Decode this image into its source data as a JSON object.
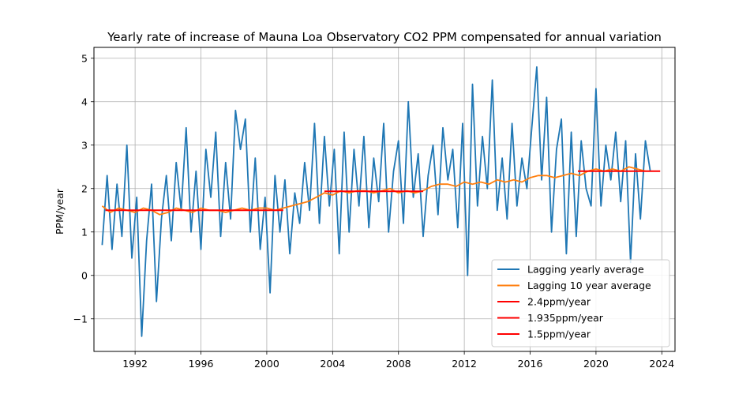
{
  "chart_data": {
    "type": "line",
    "title": "Yearly rate of increase of Mauna Loa Observatory CO2 PPM compensated for annual variation",
    "xlabel": "",
    "ylabel": "PPM/year",
    "xlim": [
      1989.5,
      2024.8
    ],
    "ylim": [
      -1.75,
      5.25
    ],
    "x_ticks": [
      1992,
      1996,
      2000,
      2004,
      2008,
      2012,
      2016,
      2020,
      2024
    ],
    "y_ticks": [
      -1,
      0,
      1,
      2,
      3,
      4,
      5
    ],
    "y_tick_labels": [
      "−1",
      "0",
      "1",
      "2",
      "3",
      "4",
      "5"
    ],
    "grid": true,
    "legend_position": "lower-right",
    "series": [
      {
        "name": "Lagging yearly average",
        "color": "#1f77b4",
        "x": [
          1990.0,
          1990.3,
          1990.6,
          1990.9,
          1991.2,
          1991.5,
          1991.8,
          1992.1,
          1992.4,
          1992.7,
          1993.0,
          1993.3,
          1993.6,
          1993.9,
          1994.2,
          1994.5,
          1994.8,
          1995.1,
          1995.4,
          1995.7,
          1996.0,
          1996.3,
          1996.6,
          1996.9,
          1997.2,
          1997.5,
          1997.8,
          1998.1,
          1998.4,
          1998.7,
          1999.0,
          1999.3,
          1999.6,
          1999.9,
          2000.2,
          2000.5,
          2000.8,
          2001.1,
          2001.4,
          2001.7,
          2002.0,
          2002.3,
          2002.6,
          2002.9,
          2003.2,
          2003.5,
          2003.8,
          2004.1,
          2004.4,
          2004.7,
          2005.0,
          2005.3,
          2005.6,
          2005.9,
          2006.2,
          2006.5,
          2006.8,
          2007.1,
          2007.4,
          2007.7,
          2008.0,
          2008.3,
          2008.6,
          2008.9,
          2009.2,
          2009.5,
          2009.8,
          2010.1,
          2010.4,
          2010.7,
          2011.0,
          2011.3,
          2011.6,
          2011.9,
          2012.2,
          2012.5,
          2012.8,
          2013.1,
          2013.4,
          2013.7,
          2014.0,
          2014.3,
          2014.6,
          2014.9,
          2015.2,
          2015.5,
          2015.8,
          2016.1,
          2016.4,
          2016.7,
          2017.0,
          2017.3,
          2017.6,
          2017.9,
          2018.2,
          2018.5,
          2018.8,
          2019.1,
          2019.4,
          2019.7,
          2020.0,
          2020.3,
          2020.6,
          2020.9,
          2021.2,
          2021.5,
          2021.8,
          2022.1,
          2022.4,
          2022.7,
          2023.0,
          2023.3
        ],
        "values": [
          0.7,
          2.3,
          0.6,
          2.1,
          0.9,
          3.0,
          0.4,
          1.8,
          -1.4,
          0.8,
          2.1,
          -0.6,
          1.3,
          2.3,
          0.8,
          2.6,
          1.5,
          3.4,
          1.0,
          2.4,
          0.6,
          2.9,
          1.8,
          3.3,
          0.9,
          2.6,
          1.3,
          3.8,
          2.9,
          3.6,
          1.0,
          2.7,
          0.6,
          1.8,
          -0.4,
          2.3,
          1.0,
          2.2,
          0.5,
          1.9,
          1.2,
          2.6,
          1.5,
          3.5,
          1.2,
          3.2,
          1.6,
          2.9,
          0.5,
          3.3,
          1.0,
          2.9,
          1.6,
          3.2,
          1.1,
          2.7,
          1.7,
          3.5,
          1.0,
          2.4,
          3.1,
          1.2,
          4.0,
          1.8,
          2.8,
          0.9,
          2.3,
          3.0,
          1.4,
          3.4,
          2.2,
          2.9,
          1.1,
          3.5,
          0.0,
          4.4,
          1.6,
          3.2,
          2.0,
          4.5,
          1.5,
          2.7,
          1.3,
          3.5,
          1.6,
          2.7,
          2.0,
          3.4,
          4.8,
          2.2,
          4.1,
          1.0,
          2.9,
          3.6,
          0.5,
          3.3,
          0.9,
          3.1,
          2.0,
          1.6,
          4.3,
          1.6,
          3.0,
          2.2,
          3.3,
          1.7,
          3.1,
          0.3,
          2.8,
          1.3,
          3.1,
          2.4
        ]
      },
      {
        "name": "Lagging 10 year average",
        "color": "#ff7f0e",
        "x": [
          1990.0,
          1990.5,
          1991.0,
          1991.5,
          1992.0,
          1992.5,
          1993.0,
          1993.5,
          1994.0,
          1994.5,
          1995.0,
          1995.5,
          1996.0,
          1996.5,
          1997.0,
          1997.5,
          1998.0,
          1998.5,
          1999.0,
          1999.5,
          2000.0,
          2000.5,
          2001.0,
          2001.5,
          2002.0,
          2002.5,
          2003.0,
          2003.5,
          2004.0,
          2004.5,
          2005.0,
          2005.5,
          2006.0,
          2006.5,
          2007.0,
          2007.5,
          2008.0,
          2008.5,
          2009.0,
          2009.5,
          2010.0,
          2010.5,
          2011.0,
          2011.5,
          2012.0,
          2012.5,
          2013.0,
          2013.5,
          2014.0,
          2014.5,
          2015.0,
          2015.5,
          2016.0,
          2016.5,
          2017.0,
          2017.5,
          2018.0,
          2018.5,
          2019.0,
          2019.5,
          2020.0,
          2020.5,
          2021.0,
          2021.5,
          2022.0,
          2022.5,
          2023.0
        ],
        "values": [
          1.6,
          1.45,
          1.55,
          1.5,
          1.45,
          1.55,
          1.5,
          1.4,
          1.45,
          1.55,
          1.5,
          1.45,
          1.55,
          1.5,
          1.5,
          1.45,
          1.5,
          1.55,
          1.5,
          1.55,
          1.55,
          1.5,
          1.55,
          1.6,
          1.65,
          1.7,
          1.8,
          1.9,
          1.85,
          1.95,
          1.9,
          1.95,
          1.95,
          1.9,
          1.95,
          2.0,
          1.9,
          1.95,
          1.9,
          1.95,
          2.05,
          2.1,
          2.1,
          2.05,
          2.15,
          2.1,
          2.15,
          2.1,
          2.2,
          2.15,
          2.2,
          2.15,
          2.25,
          2.3,
          2.3,
          2.25,
          2.3,
          2.35,
          2.3,
          2.4,
          2.45,
          2.4,
          2.45,
          2.4,
          2.5,
          2.45,
          2.4
        ]
      },
      {
        "name": "2.4ppm/year",
        "color": "#ff0000",
        "x": [
          2018.9,
          2023.9
        ],
        "values": [
          2.4,
          2.4
        ]
      },
      {
        "name": "1.935ppm/year",
        "color": "#ff0000",
        "x": [
          2003.5,
          2009.5
        ],
        "values": [
          1.935,
          1.935
        ]
      },
      {
        "name": "1.5ppm/year",
        "color": "#ff0000",
        "x": [
          1990.2,
          2001.0
        ],
        "values": [
          1.5,
          1.5
        ]
      }
    ]
  }
}
